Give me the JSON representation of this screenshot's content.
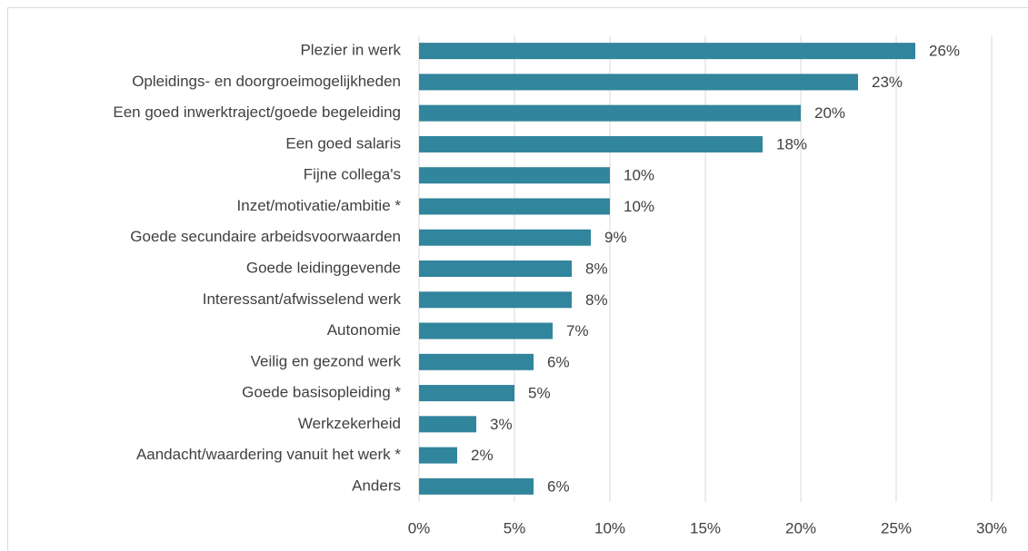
{
  "chart_data": {
    "type": "hbar",
    "categories": [
      "Plezier in werk",
      "Opleidings- en doorgroeimogelijkheden",
      "Een goed inwerktraject/goede begeleiding",
      "Een goed salaris",
      "Fijne collega's",
      "Inzet/motivatie/ambitie *",
      "Goede secundaire arbeidsvoorwaarden",
      "Goede leidinggevende",
      "Interessant/afwisselend werk",
      "Autonomie",
      "Veilig en gezond werk",
      "Goede basisopleiding *",
      "Werkzekerheid",
      "Aandacht/waardering vanuit het werk *",
      "Anders"
    ],
    "values": [
      26,
      23,
      20,
      18,
      10,
      10,
      9,
      8,
      8,
      7,
      6,
      5,
      3,
      2,
      6
    ],
    "value_labels": [
      "26%",
      "23%",
      "20%",
      "18%",
      "10%",
      "10%",
      "9%",
      "8%",
      "8%",
      "7%",
      "6%",
      "5%",
      "3%",
      "2%",
      "6%"
    ],
    "color": "#31859c",
    "xlim": [
      0,
      30
    ],
    "xticks": [
      {
        "value": 0,
        "label": "0%"
      },
      {
        "value": 5,
        "label": "5%"
      },
      {
        "value": 10,
        "label": "10%"
      },
      {
        "value": 15,
        "label": "15%"
      },
      {
        "value": 20,
        "label": "20%"
      },
      {
        "value": 25,
        "label": "25%"
      },
      {
        "value": 30,
        "label": "30%"
      }
    ],
    "grid": true
  }
}
